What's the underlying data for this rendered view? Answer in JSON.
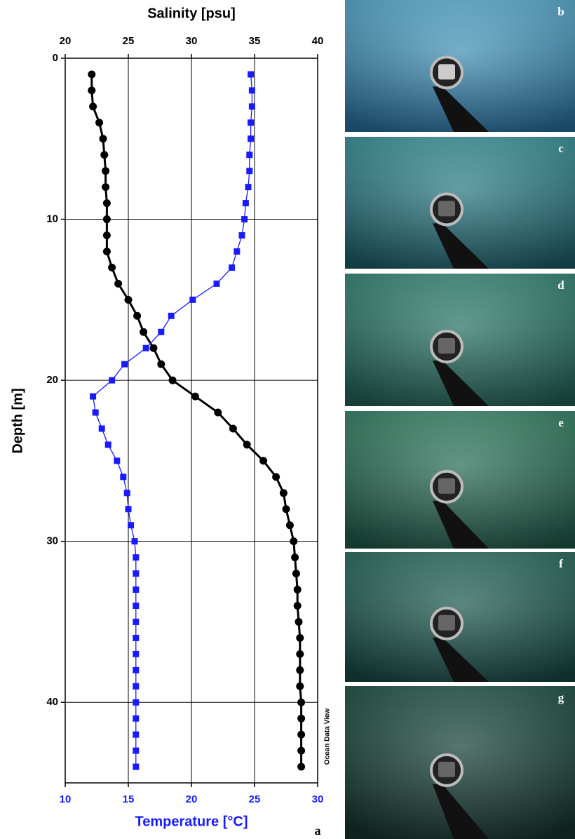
{
  "chart_data": {
    "type": "profile",
    "x2_title": "Salinity [psu]",
    "x_title": "Temperature [°C]",
    "y_title": "Depth [m]",
    "depth": [
      1,
      2,
      3,
      4,
      5,
      6,
      7,
      8,
      9,
      10,
      11,
      12,
      13,
      14,
      15,
      16,
      17,
      18,
      19,
      20,
      21,
      22,
      23,
      24,
      25,
      26,
      27,
      28,
      29,
      30,
      31,
      32,
      33,
      34,
      35,
      36,
      37,
      38,
      39,
      40,
      41,
      42,
      43,
      44
    ],
    "series": [
      {
        "color": "#000000",
        "axis": "x2",
        "marker": "circle",
        "values": [
          22.1,
          22.1,
          22.2,
          22.7,
          23.0,
          23.1,
          23.2,
          23.2,
          23.3,
          23.3,
          23.3,
          23.3,
          23.7,
          24.2,
          25.0,
          25.7,
          26.2,
          27.0,
          27.6,
          28.5,
          30.3,
          32.1,
          33.3,
          34.4,
          35.7,
          36.7,
          37.3,
          37.5,
          37.8,
          38.1,
          38.2,
          38.3,
          38.4,
          38.4,
          38.5,
          38.6,
          38.6,
          38.6,
          38.6,
          38.7,
          38.7,
          38.7,
          38.7,
          38.7
        ]
      },
      {
        "color": "#1a1aff",
        "axis": "x",
        "marker": "square",
        "values": [
          24.7,
          24.8,
          24.8,
          24.7,
          24.7,
          24.6,
          24.6,
          24.5,
          24.3,
          24.2,
          24.0,
          23.6,
          23.2,
          22.0,
          20.1,
          18.4,
          17.6,
          16.4,
          14.7,
          13.7,
          12.2,
          12.4,
          12.9,
          13.4,
          14.1,
          14.6,
          14.9,
          15.0,
          15.2,
          15.5,
          15.6,
          15.6,
          15.6,
          15.6,
          15.6,
          15.6,
          15.6,
          15.6,
          15.6,
          15.6,
          15.6,
          15.6,
          15.6,
          15.6
        ]
      }
    ],
    "ylim": [
      0,
      45
    ],
    "yticks": [
      0,
      10,
      20,
      30,
      40
    ],
    "y_reversed": true,
    "xlim": [
      10,
      30
    ],
    "xticks": [
      10,
      15,
      20,
      25,
      30
    ],
    "x_color": "#1a1aff",
    "x2lim": [
      20,
      40
    ],
    "x2ticks": [
      20,
      25,
      30,
      35,
      40
    ],
    "grid": true,
    "panel_label": "a",
    "watermark": "Ocean Data View"
  },
  "photos": [
    {
      "label": "b"
    },
    {
      "label": "c"
    },
    {
      "label": "d"
    },
    {
      "label": "e"
    },
    {
      "label": "f"
    },
    {
      "label": "g"
    }
  ]
}
